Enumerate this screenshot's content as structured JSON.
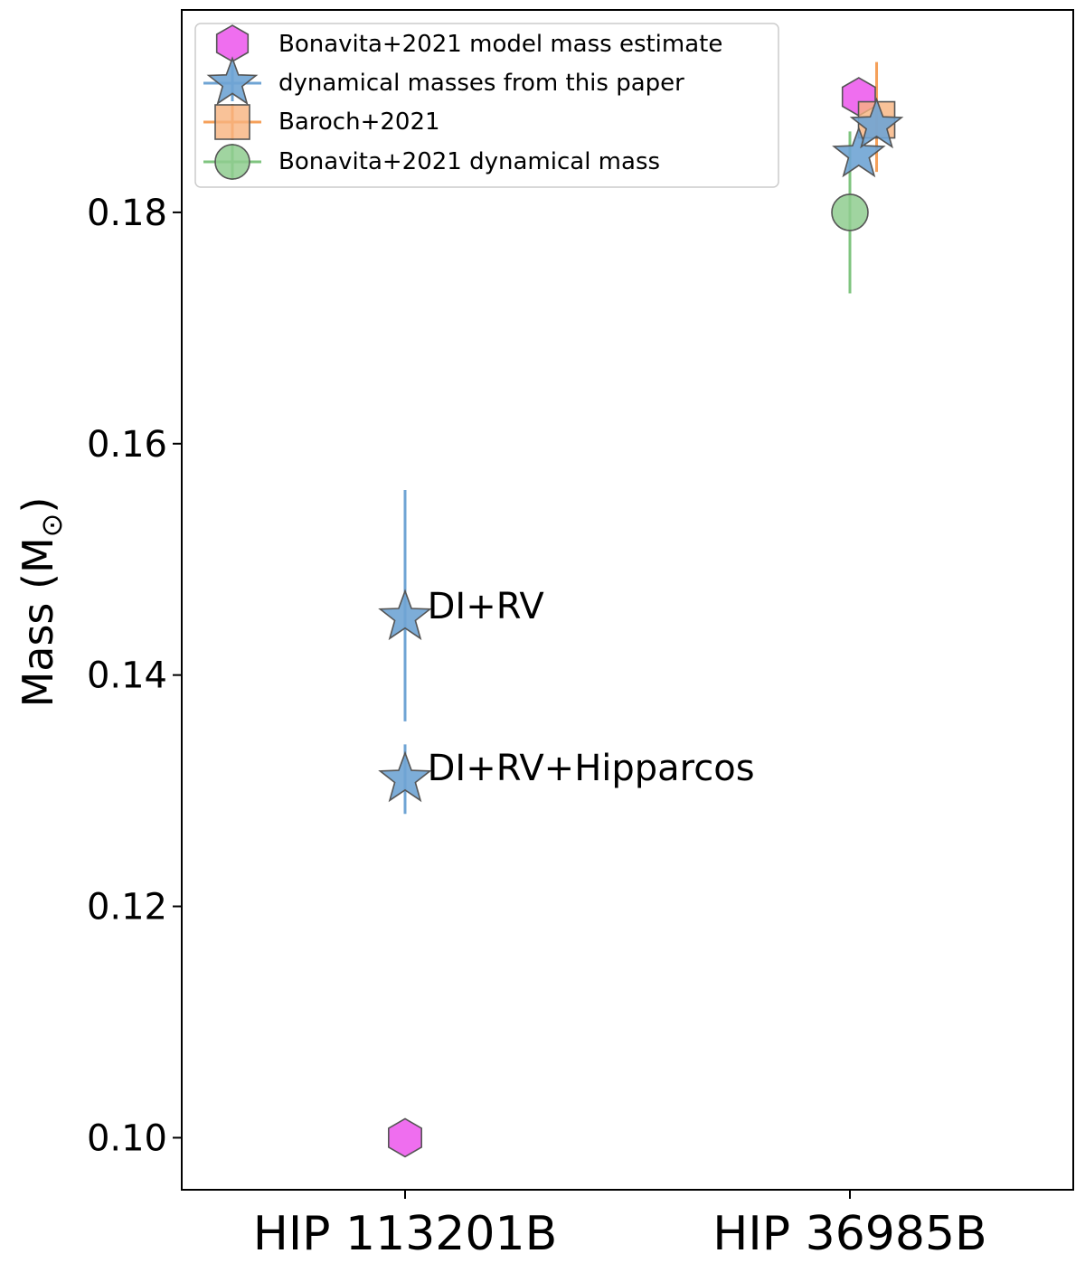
{
  "chart_data": {
    "type": "scatter",
    "title": "",
    "xlabel": "",
    "ylabel_main": "Mass (M",
    "ylabel_sub": "⊙",
    "ylabel_close": ")",
    "categories": [
      "HIP 113201B",
      "HIP 36985B"
    ],
    "ylim": [
      0.0955,
      0.1975
    ],
    "yticks": [
      0.1,
      0.12,
      0.14,
      0.16,
      0.18
    ],
    "ytick_labels": [
      "0.10",
      "0.12",
      "0.14",
      "0.16",
      "0.18"
    ],
    "grid": false,
    "legend_position": "top-left",
    "colors": {
      "model": "#ee66ee",
      "dynamical": "#6fa4d4",
      "baroch": "#f7b37e",
      "bonavita_dyn": "#8fcc8f",
      "err_dynamical": "#6fa4d4",
      "err_baroch": "#f5a05a",
      "err_bonavita_dyn": "#7fc47f"
    },
    "series": [
      {
        "key": "model",
        "name": "Bonavita+2021 model mass estimate",
        "marker": "hexagon",
        "points": [
          {
            "x": 0,
            "offset": 0.0,
            "y": 0.1
          },
          {
            "x": 1,
            "offset": 0.04,
            "y": 0.19
          }
        ]
      },
      {
        "key": "dynamical",
        "name": "dynamical masses from this paper",
        "marker": "star",
        "points": [
          {
            "x": 0,
            "offset": 0.0,
            "y": 0.145,
            "err_low": 0.136,
            "err_high": 0.156
          },
          {
            "x": 0,
            "offset": 0.0,
            "y": 0.131,
            "err_low": 0.128,
            "err_high": 0.134
          },
          {
            "x": 1,
            "offset": 0.04,
            "y": 0.185
          },
          {
            "x": 1,
            "offset": 0.12,
            "y": 0.1875
          }
        ]
      },
      {
        "key": "baroch",
        "name": "Baroch+2021",
        "marker": "square",
        "points": [
          {
            "x": 1,
            "offset": 0.12,
            "y": 0.188,
            "err_low": 0.1835,
            "err_high": 0.193
          }
        ]
      },
      {
        "key": "bonavita_dyn",
        "name": "Bonavita+2021 dynamical mass",
        "marker": "circle",
        "points": [
          {
            "x": 1,
            "offset": 0.0,
            "y": 0.18,
            "err_low": 0.173,
            "err_high": 0.187
          }
        ]
      }
    ],
    "annotations": [
      {
        "text": "DI+RV",
        "x": 0,
        "offset": 0.1,
        "y": 0.146
      },
      {
        "text": "DI+RV+Hipparcos",
        "x": 0,
        "offset": 0.1,
        "y": 0.132
      }
    ]
  }
}
